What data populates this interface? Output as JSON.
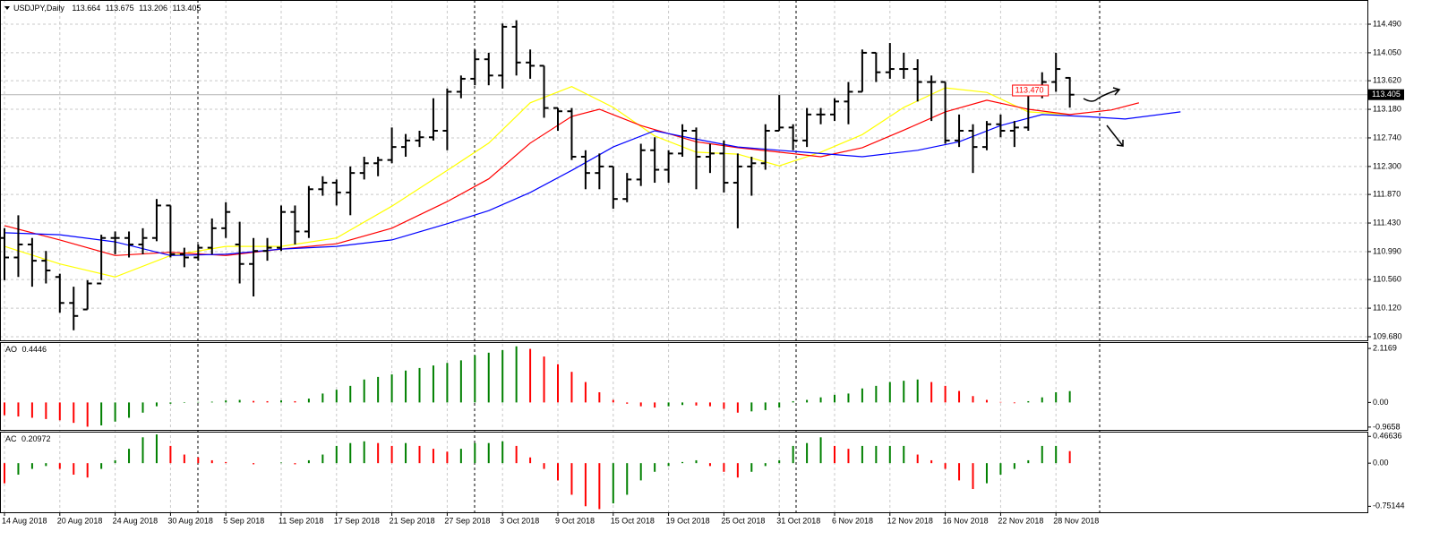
{
  "chart_data": [
    {
      "type": "ohlc",
      "title": "USDJPY,Daily",
      "categories": [
        "14 Aug 2018",
        null,
        null,
        null,
        "20 Aug 2018",
        null,
        null,
        null,
        "24 Aug 2018",
        null,
        null,
        null,
        "30 Aug 2018",
        null,
        null,
        null,
        "5 Sep 2018",
        null,
        null,
        null,
        "11 Sep 2018",
        null,
        null,
        null,
        "17 Sep 2018",
        null,
        null,
        null,
        "21 Sep 2018",
        null,
        null,
        null,
        "27 Sep 2018",
        null,
        null,
        null,
        "3 Oct 2018",
        null,
        null,
        null,
        "9 Oct 2018",
        null,
        null,
        null,
        "15 Oct 2018",
        null,
        null,
        null,
        "19 Oct 2018",
        null,
        null,
        null,
        "25 Oct 2018",
        null,
        null,
        null,
        "31 Oct 2018",
        null,
        null,
        null,
        "6 Nov 2018",
        null,
        null,
        null,
        "12 Nov 2018",
        null,
        null,
        null,
        "16 Nov 2018",
        null,
        null,
        null,
        "22 Nov 2018",
        null,
        null,
        null,
        "28 Nov 2018",
        null
      ],
      "open": [
        111.2,
        110.9,
        111.1,
        110.85,
        110.6,
        110.2,
        110.1,
        110.5,
        111.2,
        111.2,
        111.1,
        111.2,
        111.7,
        110.95,
        110.9,
        111.05,
        111.35,
        111.1,
        110.8,
        111.0,
        111.05,
        111.6,
        111.3,
        111.95,
        112.05,
        111.9,
        112.2,
        112.35,
        112.4,
        112.6,
        112.7,
        112.75,
        112.85,
        113.45,
        113.65,
        113.95,
        113.7,
        114.45,
        113.9,
        113.85,
        113.2,
        113.15,
        112.45,
        112.2,
        112.3,
        111.8,
        112.1,
        112.55,
        112.25,
        112.5,
        112.85,
        112.45,
        112.5,
        112.05,
        112.3,
        112.35,
        112.85,
        112.9,
        112.7,
        113.1,
        113.1,
        113.3,
        113.45,
        114.05,
        113.75,
        113.8,
        113.8,
        113.6,
        113.6,
        112.7,
        112.85,
        112.6,
        112.95,
        112.85,
        112.9,
        113.5,
        113.6,
        113.664
      ],
      "high": [
        111.35,
        111.55,
        111.2,
        111.0,
        110.65,
        110.45,
        110.55,
        111.25,
        111.3,
        111.3,
        111.35,
        111.8,
        111.7,
        111.05,
        111.1,
        111.5,
        111.75,
        111.45,
        111.2,
        111.2,
        111.7,
        111.7,
        112.0,
        112.15,
        112.1,
        112.3,
        112.45,
        112.45,
        112.9,
        112.8,
        112.85,
        113.35,
        113.5,
        113.7,
        114.1,
        114.05,
        114.5,
        114.55,
        114.1,
        113.85,
        113.2,
        113.2,
        112.55,
        112.5,
        112.3,
        112.2,
        112.65,
        112.75,
        112.55,
        112.95,
        112.9,
        112.65,
        112.7,
        112.5,
        112.45,
        112.95,
        113.4,
        112.95,
        113.2,
        113.2,
        113.35,
        113.6,
        114.1,
        114.05,
        114.2,
        114.05,
        113.95,
        113.7,
        113.6,
        113.1,
        112.95,
        113.0,
        113.1,
        113.0,
        113.55,
        113.75,
        114.05,
        113.675
      ],
      "low": [
        110.55,
        110.6,
        110.45,
        110.5,
        110.05,
        109.78,
        110.1,
        110.55,
        110.95,
        110.9,
        110.95,
        111.15,
        110.9,
        110.75,
        110.85,
        110.95,
        111.2,
        110.5,
        110.3,
        110.85,
        111.0,
        111.1,
        111.2,
        111.85,
        111.7,
        111.55,
        112.1,
        112.15,
        112.35,
        112.45,
        112.6,
        112.7,
        112.55,
        113.35,
        113.55,
        113.55,
        113.5,
        113.7,
        113.65,
        113.05,
        112.85,
        112.4,
        111.95,
        111.95,
        111.65,
        111.75,
        112.0,
        112.05,
        112.05,
        112.45,
        111.95,
        112.2,
        111.9,
        111.35,
        111.85,
        112.25,
        112.85,
        112.55,
        112.6,
        112.95,
        113.0,
        112.95,
        113.45,
        113.6,
        113.65,
        113.65,
        113.3,
        113.0,
        112.65,
        112.6,
        112.2,
        112.55,
        112.75,
        112.6,
        112.85,
        113.35,
        113.45,
        113.206
      ],
      "close": [
        110.9,
        111.1,
        110.85,
        110.7,
        110.2,
        110.0,
        110.5,
        111.2,
        111.2,
        111.1,
        111.2,
        111.7,
        110.95,
        110.9,
        111.05,
        111.35,
        111.6,
        110.8,
        111.0,
        111.05,
        111.6,
        111.3,
        111.95,
        112.05,
        111.9,
        112.2,
        112.35,
        112.4,
        112.6,
        112.7,
        112.75,
        112.85,
        113.45,
        113.65,
        113.95,
        113.7,
        114.45,
        113.9,
        113.85,
        113.2,
        113.15,
        112.45,
        112.2,
        112.3,
        111.8,
        112.1,
        112.55,
        112.25,
        112.5,
        112.85,
        112.45,
        112.5,
        112.05,
        112.3,
        112.35,
        112.85,
        112.9,
        112.7,
        113.1,
        113.1,
        113.3,
        113.45,
        114.05,
        113.75,
        113.8,
        113.8,
        113.6,
        113.6,
        112.7,
        112.85,
        112.6,
        112.95,
        112.85,
        112.9,
        113.5,
        113.6,
        113.8,
        113.405
      ],
      "bar_color": "#000000",
      "lines": [
        {
          "color": "#ffff00",
          "x": [
            0,
            4,
            8,
            12,
            16,
            20,
            24,
            28,
            32,
            35,
            38,
            41,
            44,
            47,
            50,
            53,
            56,
            59,
            62,
            65,
            68,
            71,
            74,
            77
          ],
          "values": [
            111.07,
            110.8,
            110.6,
            110.93,
            111.07,
            111.07,
            111.2,
            111.69,
            112.24,
            112.66,
            113.28,
            113.53,
            113.21,
            112.77,
            112.52,
            112.49,
            112.31,
            112.52,
            112.79,
            113.21,
            113.51,
            113.44,
            113.14,
            113.1
          ]
        },
        {
          "color": "#ff0000",
          "x": [
            0,
            4,
            8,
            12,
            16,
            20,
            24,
            28,
            32,
            35,
            38,
            41,
            43,
            46,
            50,
            53,
            56,
            59,
            62,
            65,
            68,
            71,
            74,
            77,
            80,
            82
          ],
          "values": [
            111.39,
            111.17,
            110.93,
            110.98,
            110.93,
            111.03,
            111.11,
            111.35,
            111.76,
            112.11,
            112.66,
            113.07,
            113.18,
            112.93,
            112.68,
            112.59,
            112.52,
            112.45,
            112.59,
            112.86,
            113.14,
            113.32,
            113.18,
            113.1,
            113.17,
            113.28
          ]
        },
        {
          "color": "#0000ff",
          "x": [
            0,
            4,
            8,
            12,
            16,
            20,
            24,
            28,
            32,
            35,
            38,
            41,
            44,
            47,
            50,
            53,
            56,
            59,
            62,
            66,
            69,
            72,
            75,
            78,
            81,
            85
          ],
          "values": [
            111.28,
            111.25,
            111.14,
            110.93,
            110.95,
            111.03,
            111.07,
            111.17,
            111.42,
            111.62,
            111.9,
            112.24,
            112.6,
            112.85,
            112.72,
            112.6,
            112.55,
            112.5,
            112.45,
            112.55,
            112.68,
            112.93,
            113.1,
            113.07,
            113.03,
            113.14
          ]
        }
      ],
      "price_label": {
        "value": 113.47,
        "label": "113.470"
      },
      "ylim": [
        109.625,
        114.862
      ],
      "yticks": [
        {
          "value": 114.49,
          "label": "114.490"
        },
        {
          "value": 114.05,
          "label": "114.050"
        },
        {
          "value": 113.62,
          "label": "113.620"
        },
        {
          "value": 113.18,
          "label": "113.180"
        },
        {
          "value": 112.74,
          "label": "112.740"
        },
        {
          "value": 112.3,
          "label": "112.300"
        },
        {
          "value": 111.87,
          "label": "111.870"
        },
        {
          "value": 111.43,
          "label": "111.430"
        },
        {
          "value": 110.99,
          "label": "110.990"
        },
        {
          "value": 110.56,
          "label": "110.560"
        },
        {
          "value": 110.12,
          "label": "110.120"
        },
        {
          "value": 109.68,
          "label": "109.680"
        }
      ],
      "grid": true
    },
    {
      "type": "bar",
      "title": "AO",
      "values": [
        -0.5,
        -0.55,
        -0.6,
        -0.65,
        -0.7,
        -0.8,
        -0.95,
        -0.9,
        -0.75,
        -0.6,
        -0.4,
        -0.15,
        -0.05,
        -0.02,
        0.02,
        0.03,
        0.08,
        0.1,
        0.06,
        0.05,
        0.08,
        0.05,
        0.15,
        0.35,
        0.5,
        0.65,
        0.9,
        1.0,
        1.1,
        1.25,
        1.35,
        1.45,
        1.55,
        1.65,
        1.85,
        1.95,
        2.05,
        2.2,
        2.1,
        1.8,
        1.5,
        1.2,
        0.8,
        0.4,
        0.1,
        -0.05,
        -0.15,
        -0.2,
        -0.15,
        -0.1,
        -0.12,
        -0.15,
        -0.25,
        -0.4,
        -0.35,
        -0.3,
        -0.2,
        0.05,
        0.1,
        0.2,
        0.3,
        0.35,
        0.55,
        0.65,
        0.8,
        0.85,
        0.9,
        0.8,
        0.65,
        0.45,
        0.25,
        0.1,
        0.02,
        -0.03,
        0.05,
        0.2,
        0.4,
        0.4446
      ],
      "up_color": "#008000",
      "down_color": "#ff0000",
      "ylim": [
        -1.075,
        2.365
      ],
      "yticks": [
        2.1169,
        {
          "value": 0,
          "label": "0.00"
        },
        -0.9658
      ]
    },
    {
      "type": "bar",
      "title": "AC",
      "values": [
        -0.35,
        -0.2,
        -0.1,
        -0.05,
        -0.1,
        -0.2,
        -0.25,
        -0.1,
        0.05,
        0.25,
        0.45,
        0.5,
        0.3,
        0.15,
        0.1,
        0.05,
        0.02,
        0.0,
        -0.02,
        0.0,
        0.01,
        -0.02,
        0.05,
        0.15,
        0.3,
        0.35,
        0.38,
        0.35,
        0.3,
        0.35,
        0.3,
        0.25,
        0.2,
        0.25,
        0.35,
        0.35,
        0.38,
        0.3,
        0.1,
        -0.1,
        -0.3,
        -0.55,
        -0.75,
        -0.8,
        -0.7,
        -0.55,
        -0.3,
        -0.15,
        -0.05,
        0.02,
        0.05,
        -0.05,
        -0.15,
        -0.25,
        -0.15,
        -0.05,
        0.05,
        0.3,
        0.35,
        0.45,
        0.3,
        0.25,
        0.3,
        0.3,
        0.3,
        0.3,
        0.15,
        0.05,
        -0.1,
        -0.3,
        -0.45,
        -0.35,
        -0.2,
        -0.1,
        0.05,
        0.3,
        0.3,
        0.20972
      ],
      "up_color": "#008000",
      "down_color": "#ff0000",
      "ylim": [
        -0.855,
        0.548
      ],
      "yticks": [
        0.46636,
        {
          "value": 0,
          "label": "0.00"
        },
        -0.75144
      ]
    }
  ]
}
